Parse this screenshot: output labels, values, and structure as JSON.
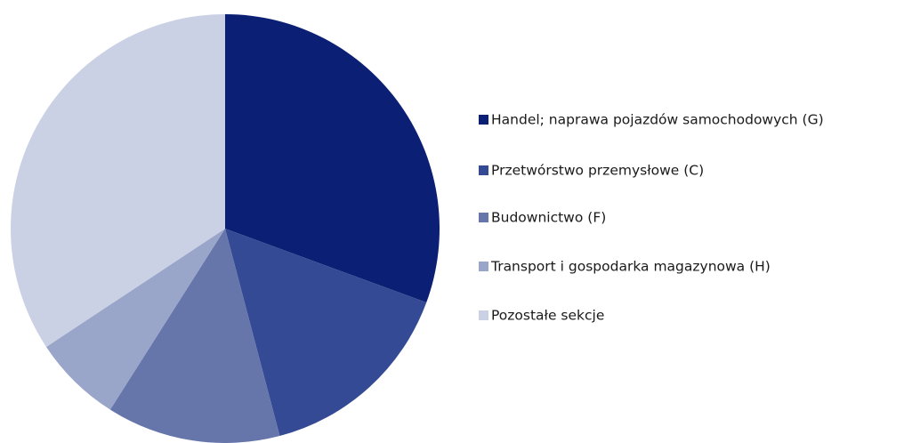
{
  "chart_data": {
    "type": "pie",
    "categories": [
      "Handel; naprawa pojazdów samochodowych (G)",
      "Przetwórstwo przemysłowe (C)",
      "Budownictwo (F)",
      "Transport i gospodarka magazynowa (H)",
      "Pozostałe sekcje"
    ],
    "values": [
      30.6,
      15.3,
      13.1,
      6.7,
      34.3
    ],
    "colors": [
      "#0b1f74",
      "#344a94",
      "#6676ab",
      "#9aa6c9",
      "#cbd1e5"
    ],
    "legend": "right"
  }
}
